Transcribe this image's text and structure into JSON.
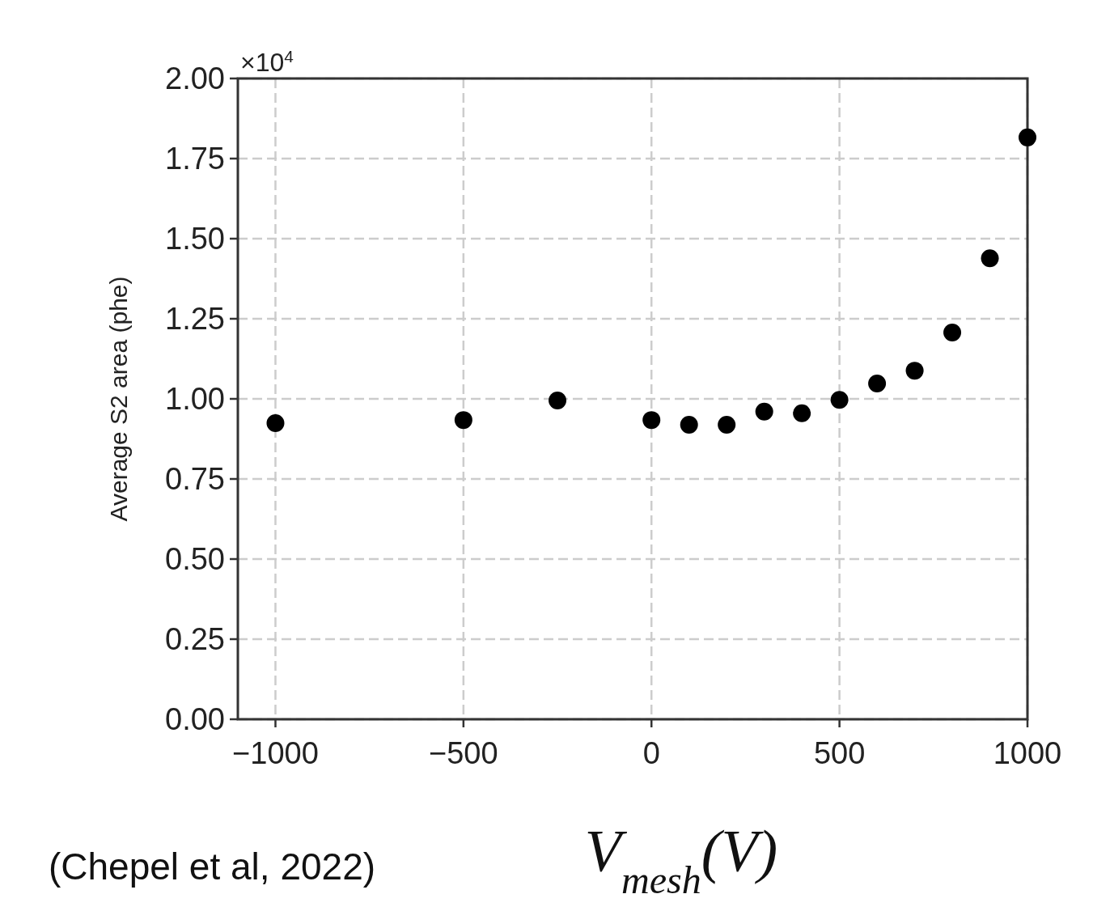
{
  "chart_data": {
    "type": "scatter",
    "xlabel": "V$_{mesh}$(V)",
    "ylabel": "Average S2 area (phe)",
    "x": [
      -1000,
      -500,
      -250,
      0,
      100,
      200,
      300,
      400,
      500,
      600,
      700,
      800,
      900,
      1000
    ],
    "values": [
      0.924,
      0.934,
      0.995,
      0.934,
      0.919,
      0.919,
      0.96,
      0.955,
      0.997,
      1.048,
      1.088,
      1.207,
      1.439,
      1.816
    ],
    "color": "#000000",
    "marker": "circle",
    "grid": true,
    "xlim": [
      -1100,
      1000
    ],
    "xticks": [
      {
        "value": -1000,
        "label": "−1000"
      },
      {
        "value": -500,
        "label": "−500"
      },
      0,
      500,
      1000
    ],
    "ylim": [
      0,
      2
    ],
    "yticks": [
      {
        "value": 0,
        "label": "0.00"
      },
      {
        "value": 0.25,
        "label": "0.25"
      },
      {
        "value": 0.5,
        "label": "0.50"
      },
      {
        "value": 0.75,
        "label": "0.75"
      },
      {
        "value": 1,
        "label": "1.00"
      },
      {
        "value": 1.25,
        "label": "1.25"
      },
      {
        "value": 1.5,
        "label": "1.50"
      },
      {
        "value": 1.75,
        "label": "1.75"
      },
      {
        "value": 2,
        "label": "2.00"
      }
    ],
    "annotations": [
      "×10$^{4}$",
      "(Chepel et al, 2022)"
    ]
  }
}
